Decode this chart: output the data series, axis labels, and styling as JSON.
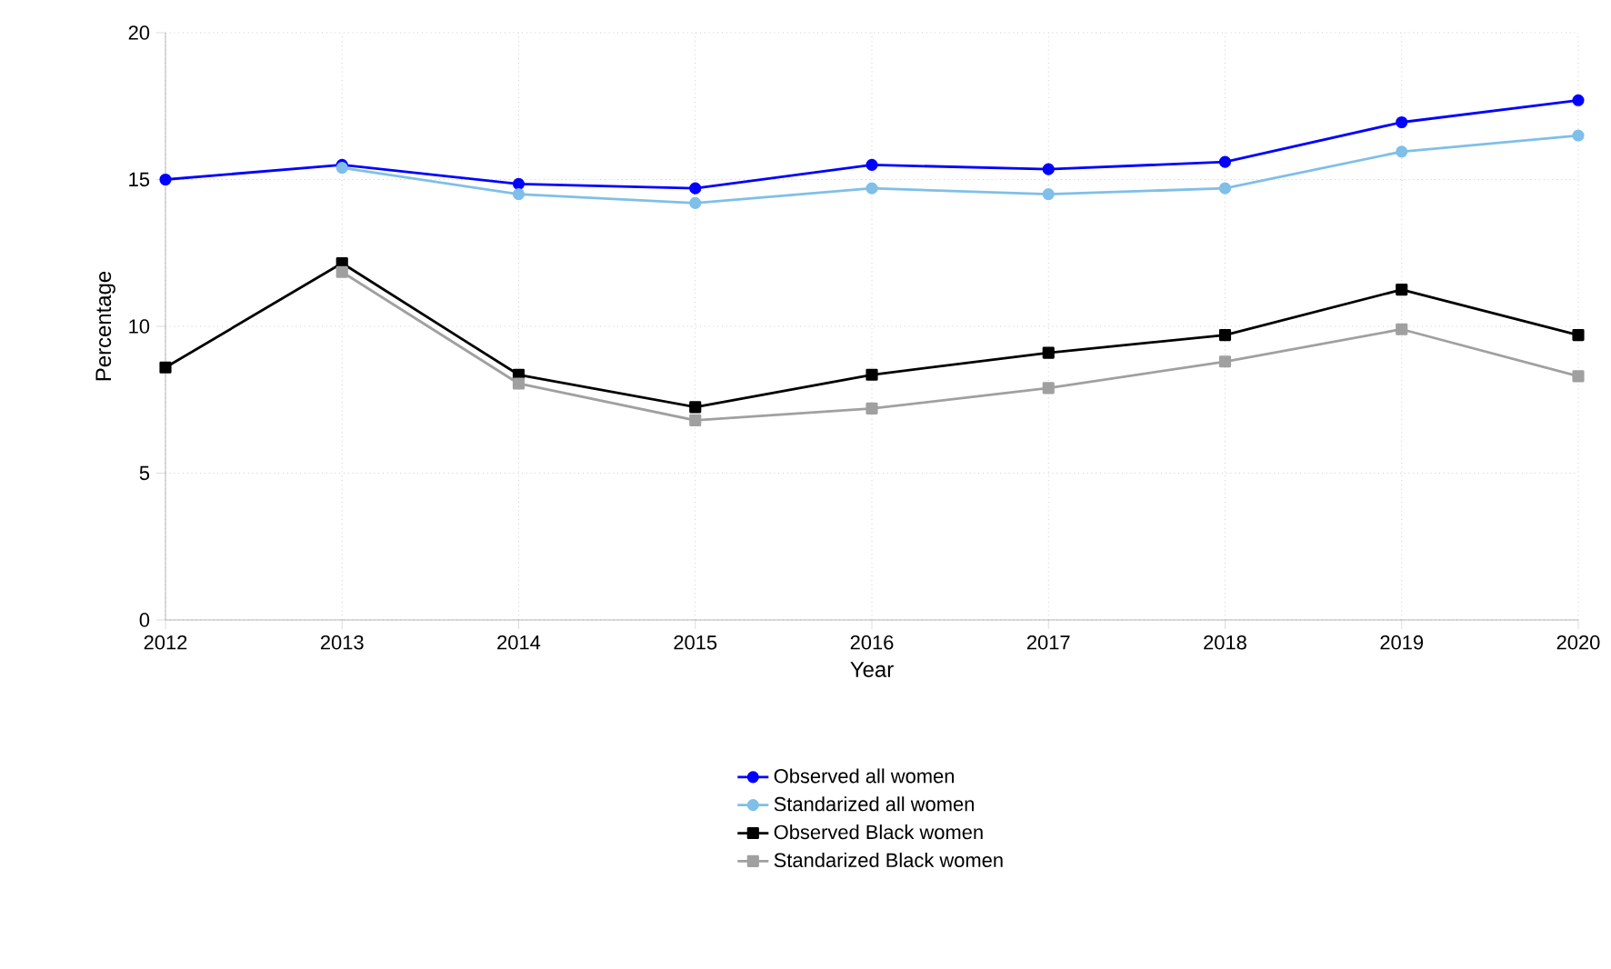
{
  "chart_data": {
    "type": "line",
    "xlabel": "Year",
    "ylabel": "Percentage",
    "x": [
      2012,
      2013,
      2014,
      2015,
      2016,
      2017,
      2018,
      2019,
      2020
    ],
    "xlim": [
      2012,
      2020
    ],
    "xticks": [
      2012,
      2013,
      2014,
      2015,
      2016,
      2017,
      2018,
      2019,
      2020
    ],
    "ylim": [
      0,
      20
    ],
    "yticks": [
      0,
      5,
      10,
      15,
      20
    ],
    "grid": true,
    "legend": "bottom",
    "line_style": "solid",
    "series": [
      {
        "name": "Observed all women",
        "color": "#0000ff",
        "marker": "circle",
        "values": [
          15.0,
          15.5,
          14.85,
          14.7,
          15.5,
          15.35,
          15.6,
          16.95,
          17.7
        ]
      },
      {
        "name": "Standarized all women",
        "color": "#7fbfe8",
        "marker": "circle",
        "values": [
          null,
          15.4,
          14.5,
          14.2,
          14.7,
          14.5,
          14.7,
          15.95,
          16.5
        ]
      },
      {
        "name": "Observed Black women",
        "color": "#000000",
        "marker": "square",
        "values": [
          8.6,
          12.15,
          8.35,
          7.25,
          8.35,
          9.1,
          9.7,
          11.25,
          9.7
        ]
      },
      {
        "name": "Standarized Black women",
        "color": "#a0a0a0",
        "marker": "square",
        "values": [
          null,
          11.85,
          8.05,
          6.8,
          7.2,
          7.9,
          8.8,
          9.9,
          8.3
        ]
      }
    ]
  }
}
